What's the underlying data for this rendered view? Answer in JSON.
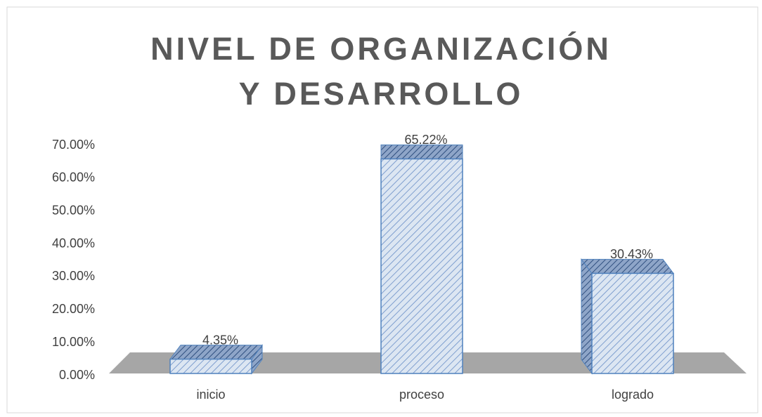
{
  "chart_data": {
    "type": "bar3d",
    "title": "NIVEL DE ORGANIZACIÓN Y DESARROLLO",
    "categories": [
      "inicio",
      "proceso",
      "logrado"
    ],
    "values": [
      4.35,
      65.22,
      30.43
    ],
    "value_labels": [
      "4.35%",
      "65.22%",
      "30.43%"
    ],
    "color": "#4f81bd",
    "ylim": [
      0,
      70
    ],
    "yticks": [
      {
        "value": 0,
        "label": "0.00%"
      },
      {
        "value": 10,
        "label": "10.00%"
      },
      {
        "value": 20,
        "label": "20.00%"
      },
      {
        "value": 30,
        "label": "30.00%"
      },
      {
        "value": 40,
        "label": "40.00%"
      },
      {
        "value": 50,
        "label": "50.00%"
      },
      {
        "value": 60,
        "label": "60.00%"
      },
      {
        "value": 70,
        "label": "70.00%"
      }
    ],
    "grid": false
  }
}
